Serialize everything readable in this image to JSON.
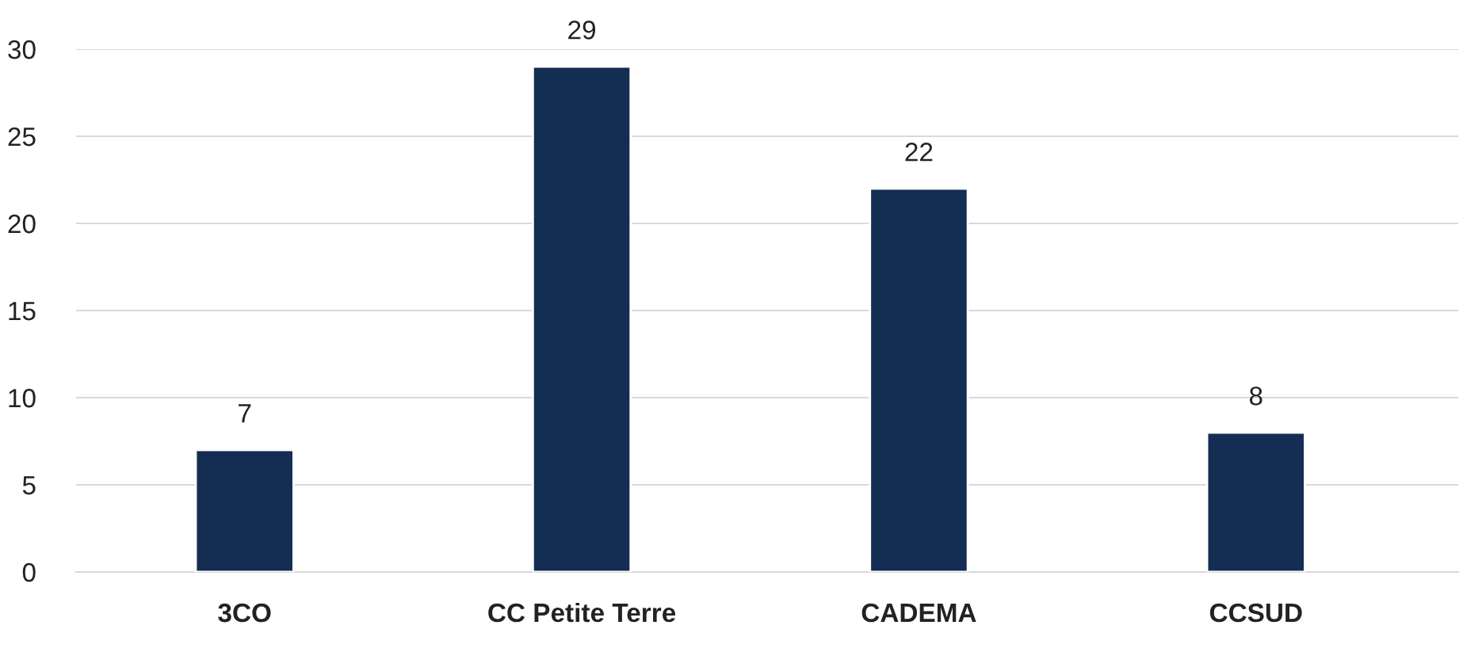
{
  "chart_data": {
    "type": "bar",
    "categories": [
      "3CO",
      "CC Petite Terre",
      "CADEMA",
      "CCSUD"
    ],
    "values": [
      7,
      29,
      22,
      8
    ],
    "color": "#142d52",
    "ylim": [
      0,
      30
    ],
    "yticks": [
      0,
      5,
      10,
      15,
      20,
      25,
      30
    ],
    "grid": "y",
    "data_labels": true
  }
}
